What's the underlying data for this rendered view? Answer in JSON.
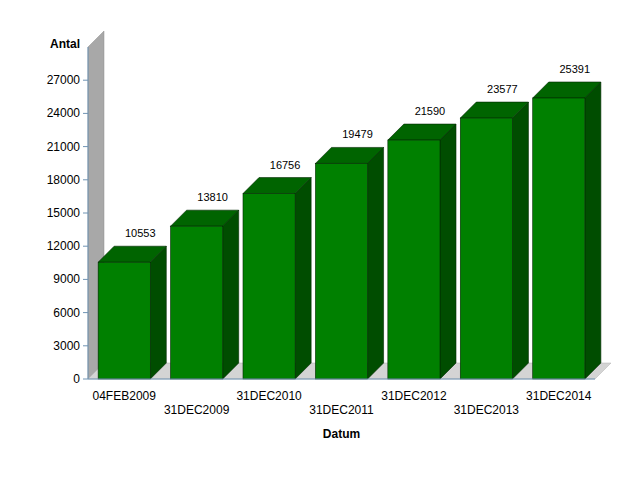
{
  "chart_data": {
    "type": "bar",
    "y_label": "Antal",
    "x_label": "Datum",
    "categories": [
      "04FEB2009",
      "31DEC2009",
      "31DEC2010",
      "31DEC2011",
      "31DEC2012",
      "31DEC2013",
      "31DEC2014"
    ],
    "values": [
      10553,
      13810,
      16756,
      19479,
      21590,
      23577,
      25391
    ],
    "color": "#008000",
    "ylim": [
      0,
      30000
    ],
    "yticks": [
      0,
      3000,
      6000,
      9000,
      12000,
      15000,
      18000,
      21000,
      24000,
      27000
    ],
    "grid": false,
    "data_labels": true
  }
}
